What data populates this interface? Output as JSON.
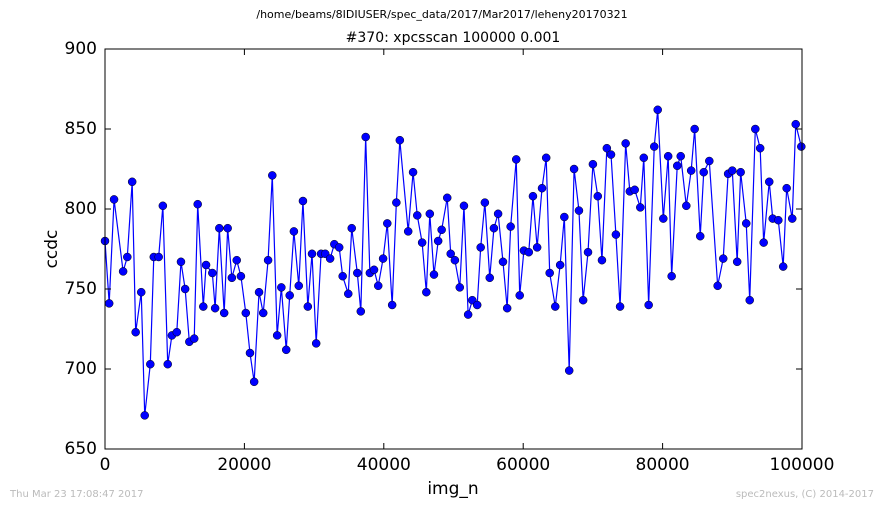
{
  "chart_data": {
    "type": "line",
    "path_title": "/home/beams/8IDIUSER/spec_data/2017/Mar2017/leheny20170321",
    "title": "#370: xpcsscan 100000 0.001",
    "x_label": "img_n",
    "y_label": "ccdc",
    "footer_left": "Thu Mar 23 17:08:47 2017",
    "footer_right": "spec2nexus, (C) 2014-2017",
    "xlim": [
      0,
      100000
    ],
    "ylim": [
      650,
      900
    ],
    "xticks": [
      0,
      20000,
      40000,
      60000,
      80000,
      100000
    ],
    "yticks": [
      650,
      700,
      750,
      800,
      850,
      900
    ],
    "x": [
      0,
      600,
      1300,
      2600,
      3200,
      3900,
      4400,
      5200,
      5700,
      6500,
      7000,
      7700,
      8300,
      9000,
      9600,
      10300,
      10900,
      11500,
      12100,
      12800,
      13300,
      14100,
      14500,
      15400,
      15800,
      16400,
      17100,
      17600,
      18200,
      18900,
      19500,
      20200,
      20800,
      21400,
      22100,
      22700,
      23400,
      24000,
      24700,
      25300,
      26000,
      26500,
      27100,
      27800,
      28400,
      29100,
      29700,
      30300,
      31000,
      31600,
      32300,
      32900,
      33600,
      34100,
      34900,
      35400,
      36200,
      36700,
      37400,
      38000,
      38600,
      39200,
      39900,
      40500,
      41200,
      41800,
      42300,
      43500,
      44200,
      44800,
      45500,
      46100,
      46600,
      47200,
      47800,
      48300,
      49100,
      49600,
      50200,
      50900,
      51500,
      52100,
      52700,
      53400,
      53900,
      54500,
      55200,
      55800,
      56400,
      57100,
      57700,
      58200,
      59000,
      59500,
      60100,
      60800,
      61400,
      62000,
      62700,
      63300,
      63800,
      64600,
      65300,
      65900,
      66600,
      67300,
      68000,
      68600,
      69300,
      70000,
      70700,
      71300,
      72000,
      72600,
      73300,
      73900,
      74700,
      75300,
      76000,
      76800,
      77300,
      78000,
      78800,
      79300,
      80100,
      80800,
      81300,
      82100,
      82600,
      83400,
      84100,
      84600,
      85400,
      85900,
      86700,
      87900,
      88700,
      89400,
      90000,
      90700,
      91200,
      92000,
      92500,
      93300,
      94000,
      94500,
      95300,
      95800,
      96600,
      97300,
      97800,
      98600,
      99100,
      99900
    ],
    "series": [
      {
        "name": "ccdc",
        "color": "#0000ff",
        "values": [
          780,
          741,
          806,
          761,
          770,
          817,
          723,
          748,
          671,
          703,
          770,
          770,
          802,
          703,
          721,
          723,
          767,
          750,
          717,
          719,
          803,
          739,
          765,
          760,
          738,
          788,
          735,
          788,
          757,
          768,
          758,
          735,
          710,
          692,
          748,
          735,
          768,
          821,
          721,
          751,
          712,
          746,
          786,
          752,
          805,
          739,
          772,
          716,
          772,
          772,
          769,
          778,
          776,
          758,
          747,
          788,
          760,
          736,
          845,
          760,
          762,
          752,
          769,
          791,
          740,
          804,
          843,
          786,
          823,
          796,
          779,
          748,
          797,
          759,
          780,
          787,
          807,
          772,
          768,
          751,
          802,
          734,
          743,
          740,
          776,
          804,
          757,
          788,
          797,
          767,
          738,
          789,
          831,
          746,
          774,
          773,
          808,
          776,
          813,
          832,
          760,
          739,
          765,
          795,
          699,
          825,
          799,
          743,
          773,
          828,
          808,
          768,
          838,
          834,
          784,
          739,
          841,
          811,
          812,
          801,
          832,
          740,
          839,
          862,
          794,
          833,
          758,
          827,
          833,
          802,
          824,
          850,
          783,
          823,
          830,
          752,
          769,
          822,
          824,
          767,
          823,
          791,
          743,
          850,
          838,
          779,
          817,
          794,
          793,
          764,
          813,
          794,
          853,
          839
        ]
      }
    ]
  }
}
